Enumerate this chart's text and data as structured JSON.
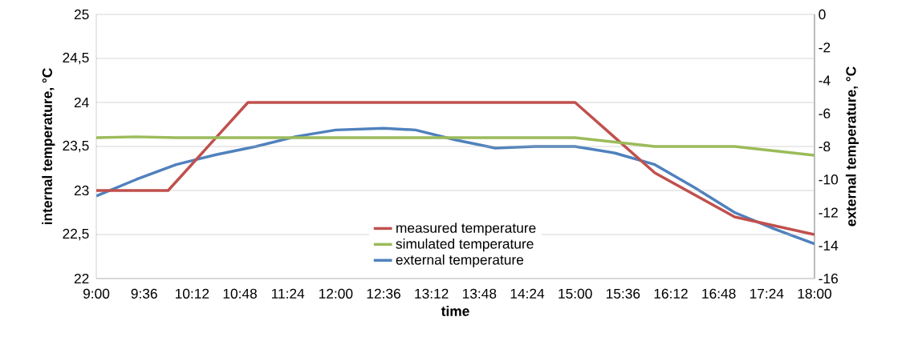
{
  "chart_data": {
    "type": "line",
    "xlabel": "time",
    "ylabel": "internal temperature, °C",
    "y2label": "external temperature, °C",
    "xlim": [
      9,
      18
    ],
    "xticks": [
      {
        "value": 9,
        "label": "9:00"
      },
      {
        "value": 9.6,
        "label": "9:36"
      },
      {
        "value": 10.2,
        "label": "10:12"
      },
      {
        "value": 10.8,
        "label": "10:48"
      },
      {
        "value": 11.4,
        "label": "11:24"
      },
      {
        "value": 12,
        "label": "12:00"
      },
      {
        "value": 12.6,
        "label": "12:36"
      },
      {
        "value": 13.2,
        "label": "13:12"
      },
      {
        "value": 13.8,
        "label": "13:48"
      },
      {
        "value": 14.4,
        "label": "14:24"
      },
      {
        "value": 15,
        "label": "15:00"
      },
      {
        "value": 15.6,
        "label": "15:36"
      },
      {
        "value": 16.2,
        "label": "16:12"
      },
      {
        "value": 16.8,
        "label": "16:48"
      },
      {
        "value": 17.4,
        "label": "17:24"
      },
      {
        "value": 18,
        "label": "18:00"
      }
    ],
    "ylim": [
      22,
      25
    ],
    "yticks": [
      22,
      {
        "value": 22.5,
        "label": "22,5"
      },
      23,
      {
        "value": 23.5,
        "label": "23,5"
      },
      24,
      {
        "value": 24.5,
        "label": "24,5"
      },
      25
    ],
    "y2lim": [
      -16,
      0
    ],
    "y2ticks": [
      -16,
      -14,
      -12,
      -10,
      -8,
      -6,
      -4,
      -2,
      0
    ],
    "grid": "y",
    "legend": "bottom",
    "marker": "none",
    "line_style": "solid",
    "series": [
      {
        "name": "measured temperature",
        "color": "#c0504d",
        "x": [
          9,
          9.9,
          10.9,
          15,
          16,
          17,
          18
        ],
        "values": [
          23,
          23,
          24,
          24,
          23.2,
          22.7,
          22.5
        ]
      },
      {
        "name": "simulated temperature",
        "color": "#9bbb59",
        "x": [
          9,
          9.5,
          10,
          11,
          12,
          13,
          14,
          15,
          15.5,
          16,
          17,
          18
        ],
        "values": [
          23.6,
          23.61,
          23.6,
          23.6,
          23.6,
          23.6,
          23.6,
          23.6,
          23.55,
          23.5,
          23.5,
          23.4
        ]
      },
      {
        "name": "external temperature",
        "color": "#4f81bd",
        "axis": "y2",
        "x": [
          9,
          9.5,
          10,
          10.5,
          11,
          11.5,
          12,
          12.6,
          13,
          13.5,
          14,
          14.5,
          15,
          15.5,
          16,
          16.5,
          17,
          17.5,
          18
        ],
        "values": [
          -11,
          -10,
          -9.1,
          -8.5,
          -8,
          -7.4,
          -7,
          -6.9,
          -7,
          -7.6,
          -8.1,
          -8,
          -8,
          -8.4,
          -9.1,
          -10.5,
          -12,
          -13,
          -13.9
        ]
      }
    ]
  }
}
